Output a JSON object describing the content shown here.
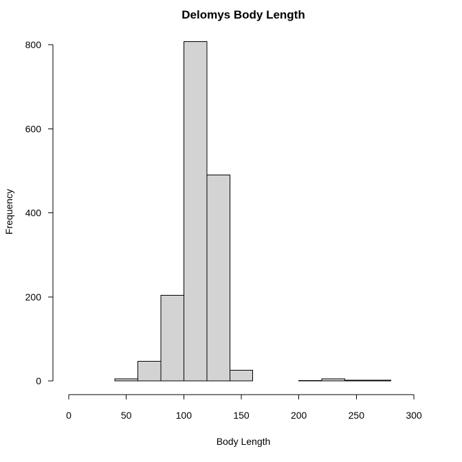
{
  "chart_data": {
    "type": "bar",
    "title": "Delomys Body Length",
    "xlabel": "Body Length",
    "ylabel": "Frequency",
    "bins": [
      {
        "start": 40,
        "end": 60,
        "count": 5
      },
      {
        "start": 60,
        "end": 80,
        "count": 47
      },
      {
        "start": 80,
        "end": 100,
        "count": 204
      },
      {
        "start": 100,
        "end": 120,
        "count": 807
      },
      {
        "start": 120,
        "end": 140,
        "count": 490
      },
      {
        "start": 140,
        "end": 160,
        "count": 25
      },
      {
        "start": 160,
        "end": 180,
        "count": 0
      },
      {
        "start": 180,
        "end": 200,
        "count": 0
      },
      {
        "start": 200,
        "end": 220,
        "count": 1
      },
      {
        "start": 220,
        "end": 240,
        "count": 5
      },
      {
        "start": 240,
        "end": 260,
        "count": 2
      },
      {
        "start": 260,
        "end": 280,
        "count": 2
      }
    ],
    "xlim": [
      0,
      300
    ],
    "ylim": [
      0,
      800
    ],
    "xticks": [
      0,
      50,
      100,
      150,
      200,
      250,
      300
    ],
    "yticks": [
      0,
      200,
      400,
      600,
      800
    ],
    "bar_color": "#d3d3d3",
    "grid": false,
    "legend": "none"
  }
}
